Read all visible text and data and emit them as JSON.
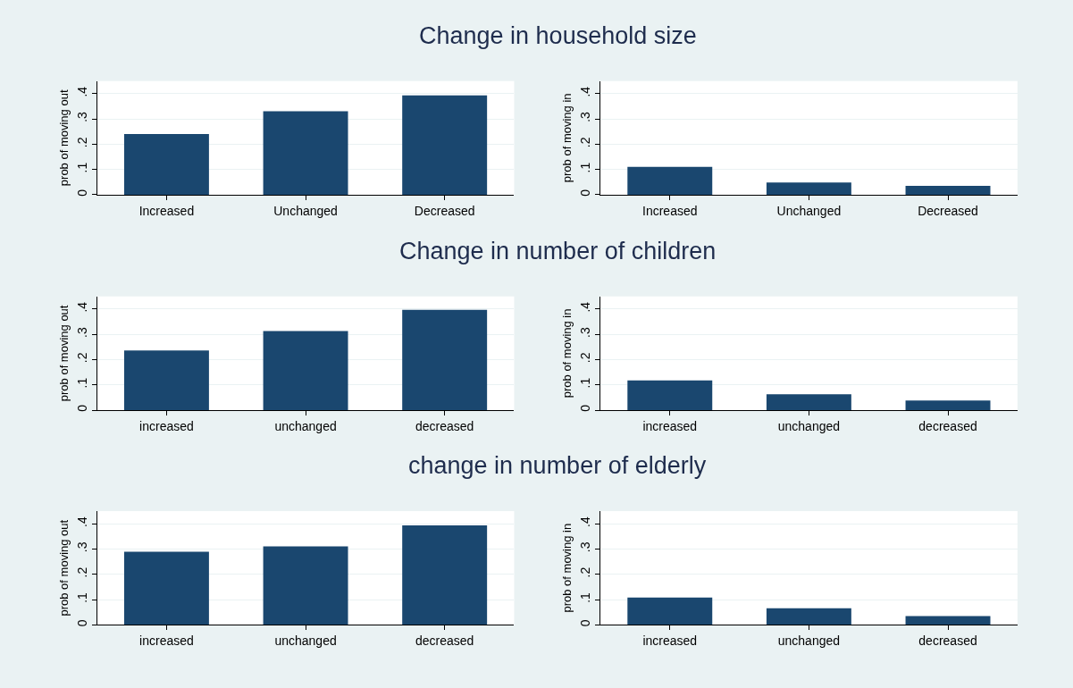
{
  "chart_data": [
    {
      "type": "bar",
      "title": "Change in household size",
      "ylabel": "prob of moving out",
      "categories": [
        "Increased",
        "Unchanged",
        "Decreased"
      ],
      "values": [
        0.24,
        0.33,
        0.393
      ],
      "color": "#1a476f",
      "ylim": [
        0,
        0.45
      ],
      "yticks": [
        {
          "value": 0,
          "label": "0"
        },
        {
          "value": 0.1,
          "label": ".1"
        },
        {
          "value": 0.2,
          "label": ".2"
        },
        {
          "value": 0.3,
          "label": ".3"
        },
        {
          "value": 0.4,
          "label": ".4"
        }
      ],
      "grid": "y"
    },
    {
      "type": "bar",
      "ylabel": "prob of moving in",
      "categories": [
        "Increased",
        "Unchanged",
        "Decreased"
      ],
      "values": [
        0.11,
        0.049,
        0.035
      ],
      "color": "#1a476f",
      "ylim": [
        0,
        0.45
      ],
      "yticks": [
        {
          "value": 0,
          "label": "0"
        },
        {
          "value": 0.1,
          "label": ".1"
        },
        {
          "value": 0.2,
          "label": ".2"
        },
        {
          "value": 0.3,
          "label": ".3"
        },
        {
          "value": 0.4,
          "label": ".4"
        }
      ],
      "grid": "y"
    },
    {
      "type": "bar",
      "title": "Change in number of children",
      "ylabel": "prob of moving out",
      "categories": [
        "increased",
        "unchanged",
        "decreased"
      ],
      "values": [
        0.236,
        0.313,
        0.397
      ],
      "color": "#1a476f",
      "ylim": [
        0,
        0.45
      ],
      "yticks": [
        {
          "value": 0,
          "label": "0"
        },
        {
          "value": 0.1,
          "label": ".1"
        },
        {
          "value": 0.2,
          "label": ".2"
        },
        {
          "value": 0.3,
          "label": ".3"
        },
        {
          "value": 0.4,
          "label": ".4"
        }
      ],
      "grid": "y"
    },
    {
      "type": "bar",
      "ylabel": "prob of moving in",
      "categories": [
        "increased",
        "unchanged",
        "decreased"
      ],
      "values": [
        0.118,
        0.063,
        0.038
      ],
      "color": "#1a476f",
      "ylim": [
        0,
        0.45
      ],
      "yticks": [
        {
          "value": 0,
          "label": "0"
        },
        {
          "value": 0.1,
          "label": ".1"
        },
        {
          "value": 0.2,
          "label": ".2"
        },
        {
          "value": 0.3,
          "label": ".3"
        },
        {
          "value": 0.4,
          "label": ".4"
        }
      ],
      "grid": "y"
    },
    {
      "type": "bar",
      "title": "change in number of elderly",
      "ylabel": "prob of moving out",
      "categories": [
        "increased",
        "unchanged",
        "decreased"
      ],
      "values": [
        0.289,
        0.31,
        0.393
      ],
      "color": "#1a476f",
      "ylim": [
        0,
        0.45
      ],
      "yticks": [
        {
          "value": 0,
          "label": "0"
        },
        {
          "value": 0.1,
          "label": ".1"
        },
        {
          "value": 0.2,
          "label": ".2"
        },
        {
          "value": 0.3,
          "label": ".3"
        },
        {
          "value": 0.4,
          "label": ".4"
        }
      ],
      "grid": "y"
    },
    {
      "type": "bar",
      "ylabel": "prob of moving in",
      "categories": [
        "increased",
        "unchanged",
        "decreased"
      ],
      "values": [
        0.108,
        0.066,
        0.035
      ],
      "color": "#1a476f",
      "ylim": [
        0,
        0.45
      ],
      "yticks": [
        {
          "value": 0,
          "label": "0"
        },
        {
          "value": 0.1,
          "label": ".1"
        },
        {
          "value": 0.2,
          "label": ".2"
        },
        {
          "value": 0.3,
          "label": ".3"
        },
        {
          "value": 0.4,
          "label": ".4"
        }
      ],
      "grid": "y"
    }
  ]
}
